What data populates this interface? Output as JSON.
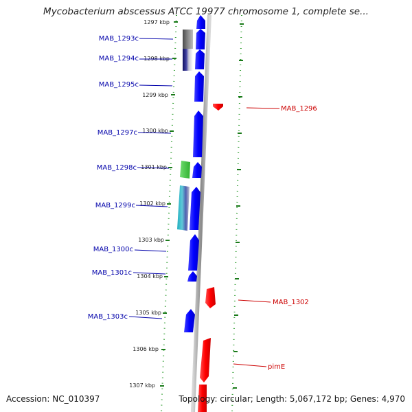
{
  "title": "Mycobacterium abscessus ATCC 19977 chromosome 1, complete se...",
  "footer": {
    "accession": "Accession: NC_010397",
    "stats": "Topology: circular; Length: 5,067,172 bp; Genes: 4,970"
  },
  "colors": {
    "forward_gene": "#ff0000",
    "reverse_gene": "#0000ff",
    "green_track": "#008800",
    "backbone": "#999999",
    "label_reverse": "#0000aa",
    "label_forward": "#cc0000"
  },
  "ruler": [
    "1297 kbp",
    "1298 kbp",
    "1299 kbp",
    "1300 kbp",
    "1301 kbp",
    "1302 kbp",
    "1303 kbp",
    "1304 kbp",
    "1305 kbp",
    "1306 kbp",
    "1307 kbp"
  ],
  "genes_reverse": [
    "MAB_1293c",
    "MAB_1294c",
    "MAB_1295c",
    "MAB_1297c",
    "MAB_1298c",
    "MAB_1299c",
    "MAB_1300c",
    "MAB_1301c",
    "MAB_1303c"
  ],
  "genes_forward": [
    "MAB_1296",
    "MAB_1302",
    "pimE"
  ]
}
